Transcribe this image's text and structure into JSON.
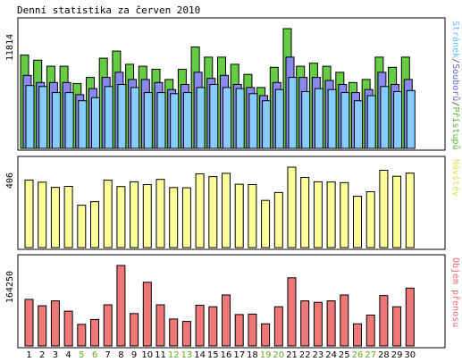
{
  "chart_data": {
    "type": "bar",
    "title": "Denní statistika za červen 2010",
    "days": [
      "1",
      "2",
      "3",
      "4",
      "5",
      "6",
      "7",
      "8",
      "9",
      "10",
      "11",
      "12",
      "13",
      "14",
      "15",
      "16",
      "17",
      "18",
      "19",
      "20",
      "21",
      "22",
      "23",
      "24",
      "25",
      "26",
      "27",
      "28",
      "29",
      "30"
    ],
    "weekend_days": [
      "5",
      "6",
      "12",
      "13",
      "19",
      "20",
      "26",
      "27"
    ],
    "colors": {
      "pristupu": "#66cc44",
      "souboru": "#8888ee",
      "stranek": "#88ccff",
      "navstev": "#ffff99",
      "objem": "#ee7777",
      "weekend_label": "#66aa22",
      "weekday_label": "#000000"
    },
    "panels": [
      {
        "ylabel": "11814",
        "ymax": 11814,
        "series_label_parts": [
          {
            "text": "Stránek",
            "color": "#66bbff"
          },
          {
            "text": "/",
            "color": "#444444"
          },
          {
            "text": "Souborů",
            "color": "#6666dd"
          },
          {
            "text": "/",
            "color": "#444444"
          },
          {
            "text": "Přístupů",
            "color": "#55bb33"
          }
        ],
        "series": [
          {
            "name": "Přístupů",
            "values": [
              9200,
              8700,
              8100,
              8100,
              6400,
              7000,
              8900,
              9600,
              8300,
              8100,
              7800,
              6800,
              7800,
              10000,
              9000,
              9000,
              8300,
              7300,
              6000,
              8000,
              11814,
              8100,
              8400,
              8100,
              7500,
              6500,
              6800,
              9000,
              8000,
              9000
            ]
          },
          {
            "name": "Souborů",
            "values": [
              7200,
              6500,
              6500,
              6500,
              5300,
              5900,
              7000,
              7500,
              6800,
              6800,
              6500,
              5800,
              6300,
              7500,
              6900,
              7200,
              6300,
              6000,
              5200,
              6500,
              9000,
              7000,
              7000,
              6700,
              6300,
              5500,
              5800,
              7500,
              6300,
              6800
            ]
          },
          {
            "name": "Stránek",
            "values": [
              6200,
              6100,
              5500,
              5500,
              4700,
              5000,
              6100,
              6300,
              6000,
              5500,
              5500,
              5400,
              5500,
              6000,
              6300,
              6000,
              5900,
              5400,
              4700,
              5800,
              7000,
              5600,
              5900,
              5800,
              5500,
              4700,
              5200,
              6100,
              5600,
              5700
            ]
          }
        ]
      },
      {
        "ylabel": "406",
        "ymax": 406,
        "series_label_parts": [
          {
            "text": "Návštěv",
            "color": "#dddd55"
          }
        ],
        "series": [
          {
            "name": "Návštěv",
            "values": [
              341,
              330,
              304,
              309,
              214,
              232,
              340,
              308,
              332,
              318,
              344,
              303,
              302,
              372,
              358,
              375,
              320,
              318,
              238,
              278,
              406,
              354,
              332,
              331,
              328,
              259,
              282,
              390,
              360,
              376
            ]
          }
        ]
      },
      {
        "ylabel": "164250",
        "ymax": 164250,
        "series_label_parts": [
          {
            "text": "Objem přenosu",
            "color": "#ee6677"
          }
        ],
        "series": [
          {
            "name": "Objem přenosu",
            "values": [
              95000,
              82000,
              92000,
              71000,
              44000,
              54000,
              84000,
              164250,
              66000,
              130000,
              84000,
              55000,
              50000,
              83000,
              80000,
              104000,
              64000,
              65000,
              45000,
              80000,
              139000,
              92000,
              89000,
              92000,
              104000,
              45000,
              63000,
              103000,
              80000,
              118000
            ]
          }
        ]
      }
    ]
  }
}
